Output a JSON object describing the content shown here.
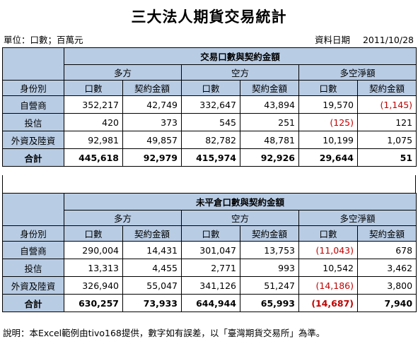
{
  "title": "三大法人期貨交易統計",
  "unit_label": "單位：口數；百萬元",
  "date_label": "資料日期",
  "date_value": "2011/10/28",
  "colors": {
    "header_bg": "#b8cce4",
    "negative": "#c00000"
  },
  "sections": [
    {
      "title": "交易口數與契約金額",
      "groups": [
        "多方",
        "空方",
        "多空淨額"
      ],
      "row_header": "身份別",
      "columns": [
        "口數",
        "契約金額",
        "口數",
        "契約金額",
        "口數",
        "契約金額"
      ],
      "rows": [
        {
          "label": "自營商",
          "cells": [
            "352,217",
            "42,749",
            "332,647",
            "43,894",
            "19,570",
            "(1,145)"
          ]
        },
        {
          "label": "投信",
          "cells": [
            "420",
            "373",
            "545",
            "251",
            "(125)",
            "121"
          ]
        },
        {
          "label": "外資及陸資",
          "cells": [
            "92,981",
            "49,857",
            "82,782",
            "48,781",
            "10,199",
            "1,075"
          ]
        },
        {
          "label": "合計",
          "cells": [
            "445,618",
            "92,979",
            "415,974",
            "92,926",
            "29,644",
            "51"
          ]
        }
      ]
    },
    {
      "title": "未平倉口數與契約金額",
      "groups": [
        "多方",
        "空方",
        "多空淨額"
      ],
      "row_header": "身份別",
      "columns": [
        "口數",
        "契約金額",
        "口數",
        "契約金額",
        "口數",
        "契約金額"
      ],
      "rows": [
        {
          "label": "自營商",
          "cells": [
            "290,004",
            "14,431",
            "301,047",
            "13,753",
            "(11,043)",
            "678"
          ]
        },
        {
          "label": "投信",
          "cells": [
            "13,313",
            "4,455",
            "2,771",
            "993",
            "10,542",
            "3,462"
          ]
        },
        {
          "label": "外資及陸資",
          "cells": [
            "326,940",
            "55,047",
            "341,126",
            "51,247",
            "(14,186)",
            "3,800"
          ]
        },
        {
          "label": "合計",
          "cells": [
            "630,257",
            "73,933",
            "644,944",
            "65,993",
            "(14,687)",
            "7,940"
          ]
        }
      ]
    }
  ],
  "note": "說明：本Excel範例由tivo168提供，數字如有誤差，以「臺灣期貨交易所」為準。"
}
